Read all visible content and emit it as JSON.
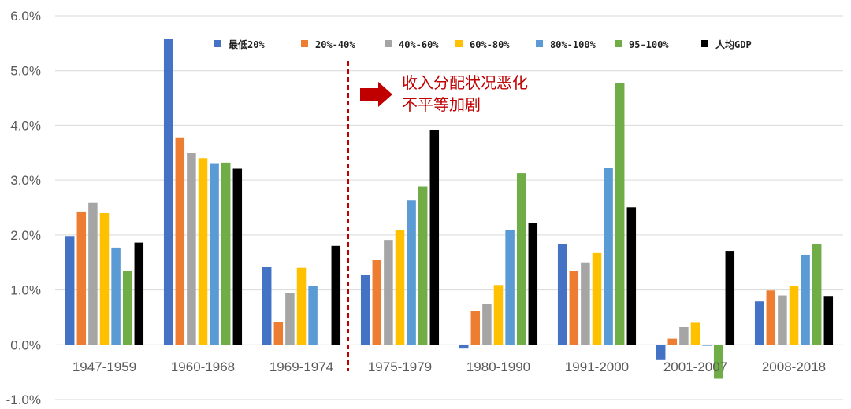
{
  "chart_data": {
    "type": "bar",
    "categories": [
      "1947-1959",
      "1960-1968",
      "1969-1974",
      "1975-1979",
      "1980-1990",
      "1991-2000",
      "2001-2007",
      "2008-2018"
    ],
    "series": [
      {
        "name": "最低20%",
        "color": "#4472c4",
        "values": [
          1.98,
          5.58,
          1.42,
          1.28,
          -0.07,
          1.84,
          -0.28,
          0.79
        ]
      },
      {
        "name": "20%-40%",
        "color": "#ed7d31",
        "values": [
          2.43,
          3.78,
          0.41,
          1.55,
          0.62,
          1.35,
          0.11,
          0.99
        ]
      },
      {
        "name": "40%-60%",
        "color": "#a5a5a5",
        "values": [
          2.59,
          3.49,
          0.95,
          1.91,
          0.74,
          1.5,
          0.32,
          0.9
        ]
      },
      {
        "name": "60%-80%",
        "color": "#ffc000",
        "values": [
          2.4,
          3.4,
          1.4,
          2.09,
          1.09,
          1.67,
          0.4,
          1.08
        ]
      },
      {
        "name": "80%-100%",
        "color": "#5b9bd5",
        "values": [
          1.77,
          3.31,
          1.07,
          2.64,
          2.09,
          3.23,
          -0.02,
          1.64
        ]
      },
      {
        "name": "95-100%",
        "color": "#70ad47",
        "values": [
          1.34,
          3.32,
          null,
          2.88,
          3.13,
          4.78,
          -0.62,
          1.84
        ]
      },
      {
        "name": "人均GDP",
        "color": "#000000",
        "values": [
          1.86,
          3.21,
          1.8,
          3.92,
          2.22,
          2.51,
          1.71,
          0.89
        ]
      }
    ],
    "y_ticks": [
      "-1.0%",
      "0.0%",
      "1.0%",
      "2.0%",
      "3.0%",
      "4.0%",
      "5.0%",
      "6.0%"
    ],
    "ylim": [
      -1.0,
      6.0
    ],
    "grid": true,
    "legend_position": "top",
    "divider_after_category": "1969-1974",
    "divider_color": "#c00000",
    "annotation": {
      "lines": [
        "收入分配状况恶化",
        "不平等加剧"
      ],
      "color": "#c00000"
    }
  }
}
